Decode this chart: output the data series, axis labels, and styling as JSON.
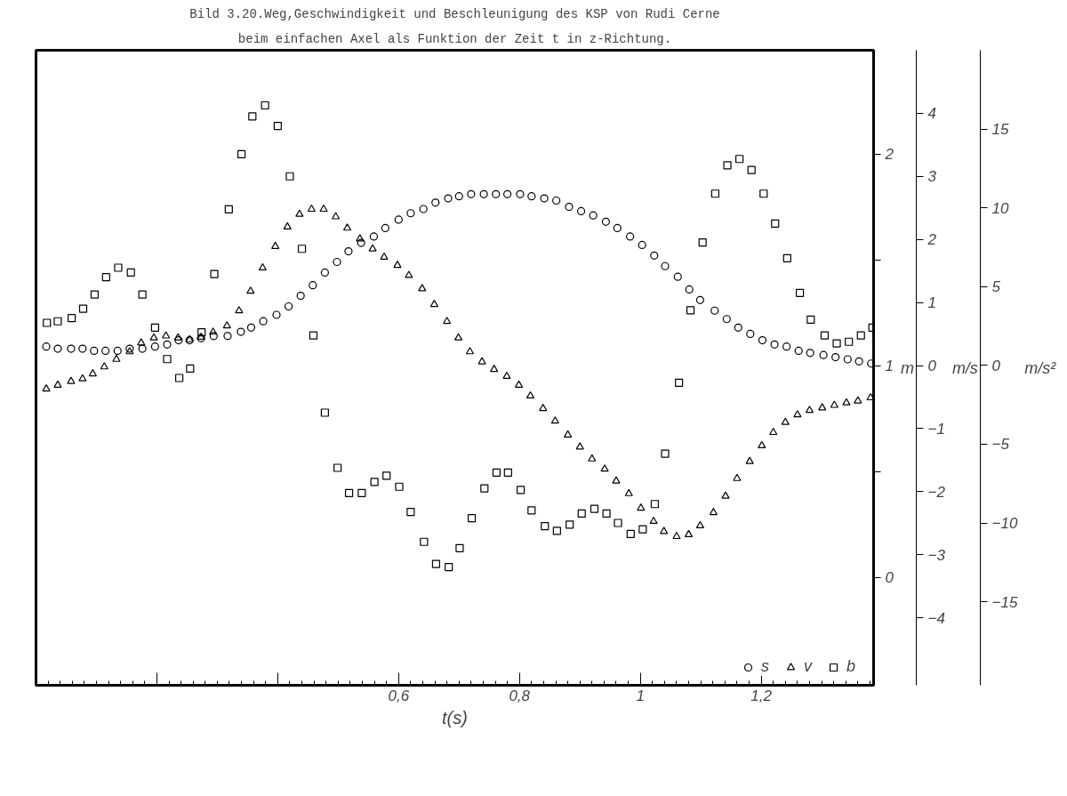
{
  "chart_data": {
    "type": "scatter",
    "title": "Bild 3.20.Weg,Geschwindigkeit und Beschleunigung des KSP von Rudi Cerne",
    "subtitle": "beim einfachen Axel als Funktion der Zeit t in z-Richtung.",
    "xlabel": "t(s)",
    "ylabel": "m",
    "y2label": "m/s",
    "y3label": "m/s²",
    "xlim": [
      0,
      1.386
    ],
    "xticks": [
      {
        "value": 0.2,
        "label": null
      },
      {
        "value": 0.4,
        "label": null
      },
      {
        "value": 0.6,
        "label": "0,6"
      },
      {
        "value": 0.8,
        "label": "0,8"
      },
      1,
      {
        "value": 1.2,
        "label": "1,2"
      }
    ],
    "ylim": [
      -0.51,
      2.49
    ],
    "yticks": [
      0,
      {
        "value": 0.5,
        "label": null
      },
      1,
      {
        "value": 1.5,
        "label": null
      },
      2
    ],
    "y2lim": [
      -5.07,
      5.0
    ],
    "y2ticks": [
      -4,
      -3,
      -2,
      -1,
      0,
      1,
      2,
      3,
      4
    ],
    "y3lim": [
      -20.3,
      20.0
    ],
    "y3ticks": [
      -15,
      -10,
      -5,
      0,
      5,
      10,
      15
    ],
    "grid": false,
    "legend": "bottom right",
    "series": [
      {
        "name": "s",
        "color": "#000000",
        "marker": "circle",
        "x": [
          0.017,
          0.036,
          0.058,
          0.077,
          0.096,
          0.115,
          0.135,
          0.155,
          0.176,
          0.197,
          0.217,
          0.236,
          0.254,
          0.273,
          0.294,
          0.317,
          0.339,
          0.356,
          0.376,
          0.398,
          0.418,
          0.438,
          0.458,
          0.478,
          0.498,
          0.517,
          0.538,
          0.559,
          0.578,
          0.6,
          0.62,
          0.641,
          0.661,
          0.682,
          0.7,
          0.72,
          0.741,
          0.761,
          0.78,
          0.801,
          0.82,
          0.841,
          0.861,
          0.882,
          0.902,
          0.922,
          0.943,
          0.962,
          0.983,
          1.003,
          1.023,
          1.041,
          1.062,
          1.081,
          1.099,
          1.123,
          1.143,
          1.162,
          1.182,
          1.202,
          1.222,
          1.242,
          1.262,
          1.281,
          1.303,
          1.323,
          1.343,
          1.362,
          1.382
        ],
        "values": [
          1.09,
          1.08,
          1.08,
          1.08,
          1.07,
          1.07,
          1.07,
          1.08,
          1.08,
          1.09,
          1.1,
          1.12,
          1.12,
          1.13,
          1.14,
          1.14,
          1.16,
          1.18,
          1.21,
          1.24,
          1.28,
          1.33,
          1.38,
          1.44,
          1.49,
          1.54,
          1.58,
          1.61,
          1.65,
          1.69,
          1.72,
          1.74,
          1.77,
          1.79,
          1.8,
          1.81,
          1.81,
          1.81,
          1.81,
          1.81,
          1.8,
          1.79,
          1.78,
          1.75,
          1.73,
          1.71,
          1.68,
          1.65,
          1.61,
          1.57,
          1.52,
          1.47,
          1.42,
          1.36,
          1.31,
          1.26,
          1.22,
          1.18,
          1.15,
          1.12,
          1.1,
          1.09,
          1.07,
          1.06,
          1.05,
          1.04,
          1.03,
          1.02,
          1.01
        ]
      },
      {
        "name": "v",
        "color": "#000000",
        "marker": "triangle",
        "axis": "y2",
        "x": [
          0.017,
          0.036,
          0.058,
          0.077,
          0.094,
          0.113,
          0.133,
          0.155,
          0.174,
          0.195,
          0.215,
          0.235,
          0.254,
          0.273,
          0.293,
          0.316,
          0.336,
          0.355,
          0.375,
          0.396,
          0.416,
          0.436,
          0.456,
          0.476,
          0.496,
          0.515,
          0.536,
          0.557,
          0.576,
          0.598,
          0.617,
          0.639,
          0.659,
          0.68,
          0.699,
          0.718,
          0.738,
          0.758,
          0.779,
          0.799,
          0.818,
          0.839,
          0.859,
          0.88,
          0.9,
          0.92,
          0.941,
          0.96,
          0.981,
          1.001,
          1.022,
          1.039,
          1.06,
          1.08,
          1.099,
          1.121,
          1.141,
          1.16,
          1.181,
          1.201,
          1.22,
          1.24,
          1.26,
          1.28,
          1.301,
          1.321,
          1.341,
          1.36,
          1.381
        ],
        "values": [
          -0.37,
          -0.31,
          -0.25,
          -0.21,
          -0.13,
          -0.02,
          0.1,
          0.22,
          0.36,
          0.44,
          0.47,
          0.44,
          0.41,
          0.45,
          0.53,
          0.63,
          0.87,
          1.18,
          1.55,
          1.89,
          2.2,
          2.4,
          2.48,
          2.48,
          2.36,
          2.18,
          2.01,
          1.85,
          1.72,
          1.59,
          1.43,
          1.22,
          0.97,
          0.7,
          0.44,
          0.22,
          0.06,
          -0.06,
          -0.17,
          -0.31,
          -0.48,
          -0.68,
          -0.88,
          -1.1,
          -1.29,
          -1.48,
          -1.64,
          -1.83,
          -2.03,
          -2.26,
          -2.47,
          -2.63,
          -2.71,
          -2.68,
          -2.54,
          -2.33,
          -2.07,
          -1.79,
          -1.52,
          -1.27,
          -1.06,
          -0.9,
          -0.78,
          -0.71,
          -0.67,
          -0.63,
          -0.59,
          -0.56,
          -0.51
        ]
      },
      {
        "name": "b",
        "color": "#000000",
        "marker": "square",
        "axis": "y3",
        "x": [
          0.018,
          0.036,
          0.059,
          0.078,
          0.097,
          0.116,
          0.136,
          0.157,
          0.176,
          0.197,
          0.217,
          0.237,
          0.255,
          0.274,
          0.295,
          0.319,
          0.34,
          0.358,
          0.379,
          0.4,
          0.42,
          0.44,
          0.459,
          0.478,
          0.499,
          0.518,
          0.539,
          0.56,
          0.58,
          0.601,
          0.62,
          0.642,
          0.662,
          0.683,
          0.701,
          0.721,
          0.742,
          0.762,
          0.781,
          0.802,
          0.82,
          0.842,
          0.862,
          0.883,
          0.903,
          0.924,
          0.944,
          0.963,
          0.984,
          1.004,
          1.024,
          1.041,
          1.064,
          1.083,
          1.103,
          1.124,
          1.144,
          1.164,
          1.184,
          1.204,
          1.223,
          1.243,
          1.264,
          1.282,
          1.305,
          1.325,
          1.345,
          1.365,
          1.384
        ],
        "values": [
          2.7,
          2.8,
          3.0,
          3.6,
          4.5,
          5.6,
          6.2,
          5.9,
          4.5,
          2.4,
          0.4,
          -0.8,
          -0.2,
          2.1,
          5.8,
          9.9,
          13.4,
          15.8,
          16.5,
          15.2,
          12.0,
          7.4,
          1.9,
          -3.0,
          -6.5,
          -8.1,
          -8.1,
          -7.4,
          -7.0,
          -7.7,
          -9.3,
          -11.2,
          -12.6,
          -12.8,
          -11.6,
          -9.7,
          -7.8,
          -6.8,
          -6.8,
          -7.9,
          -9.2,
          -10.2,
          -10.5,
          -10.1,
          -9.4,
          -9.1,
          -9.4,
          -10.0,
          -10.7,
          -10.4,
          -8.8,
          -5.6,
          -1.1,
          3.5,
          7.8,
          10.9,
          12.7,
          13.1,
          12.4,
          10.9,
          9.0,
          6.8,
          4.6,
          2.9,
          1.9,
          1.4,
          1.5,
          1.9,
          2.4
        ]
      }
    ]
  }
}
